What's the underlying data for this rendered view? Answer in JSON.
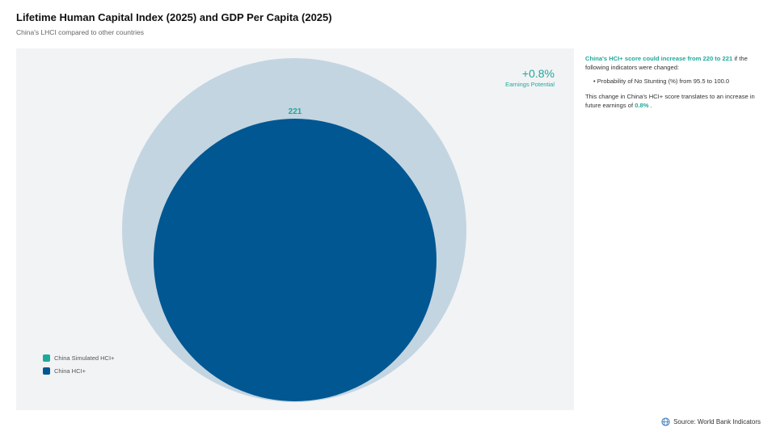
{
  "header": {
    "title": "Lifetime Human Capital Index (2025) and GDP Per Capita (2025)",
    "subtitle": "China's LHCI compared to other countries"
  },
  "chart_data": {
    "type": "bubble",
    "title": "Lifetime Human Capital Index (2025) and GDP Per Capita (2025)",
    "series": [
      {
        "name": "China Simulated HCI+",
        "value": 221,
        "color": "#c3d5e1"
      },
      {
        "name": "China HCI+",
        "value": 220,
        "color": "#005792"
      }
    ],
    "value_label": "221",
    "earnings_potential": {
      "value": "+0.8%",
      "label": "Earnings Potential"
    },
    "label_color": "#1fa99a"
  },
  "legend": {
    "items": [
      {
        "label": "China Simulated HCI+",
        "color": "#1fa99a"
      },
      {
        "label": "China HCI+",
        "color": "#005792"
      }
    ]
  },
  "side_panel": {
    "line1_highlight": "China's HCI+ score could increase from 220 to 221",
    "line1_rest": " if the following indicators were changed:",
    "bullets": [
      "Probability of No Stunting (%) from 95.5 to 100.0"
    ],
    "line2_prefix": "This change in China's HCI+ score translates to an increase in future earnings of ",
    "line2_highlight": "0.8%",
    "line2_suffix": " ."
  },
  "footer": {
    "source": "Source: World Bank Indicators",
    "icon": "globe-icon"
  }
}
